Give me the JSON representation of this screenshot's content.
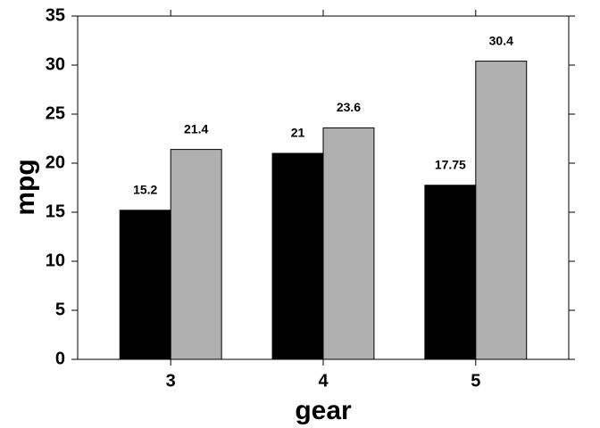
{
  "chart_data": {
    "type": "bar",
    "x_label": "gear",
    "y_label": "mpg",
    "categories": [
      "3",
      "4",
      "5"
    ],
    "series": [
      {
        "color": "#000000",
        "values": [
          15.2,
          21,
          17.75
        ]
      },
      {
        "color": "#b0b0b0",
        "values": [
          21.4,
          23.6,
          30.4
        ]
      }
    ],
    "ylim": [
      0,
      35
    ],
    "yticks": [
      0,
      5,
      10,
      15,
      20,
      25,
      30,
      35
    ],
    "grid": false
  }
}
